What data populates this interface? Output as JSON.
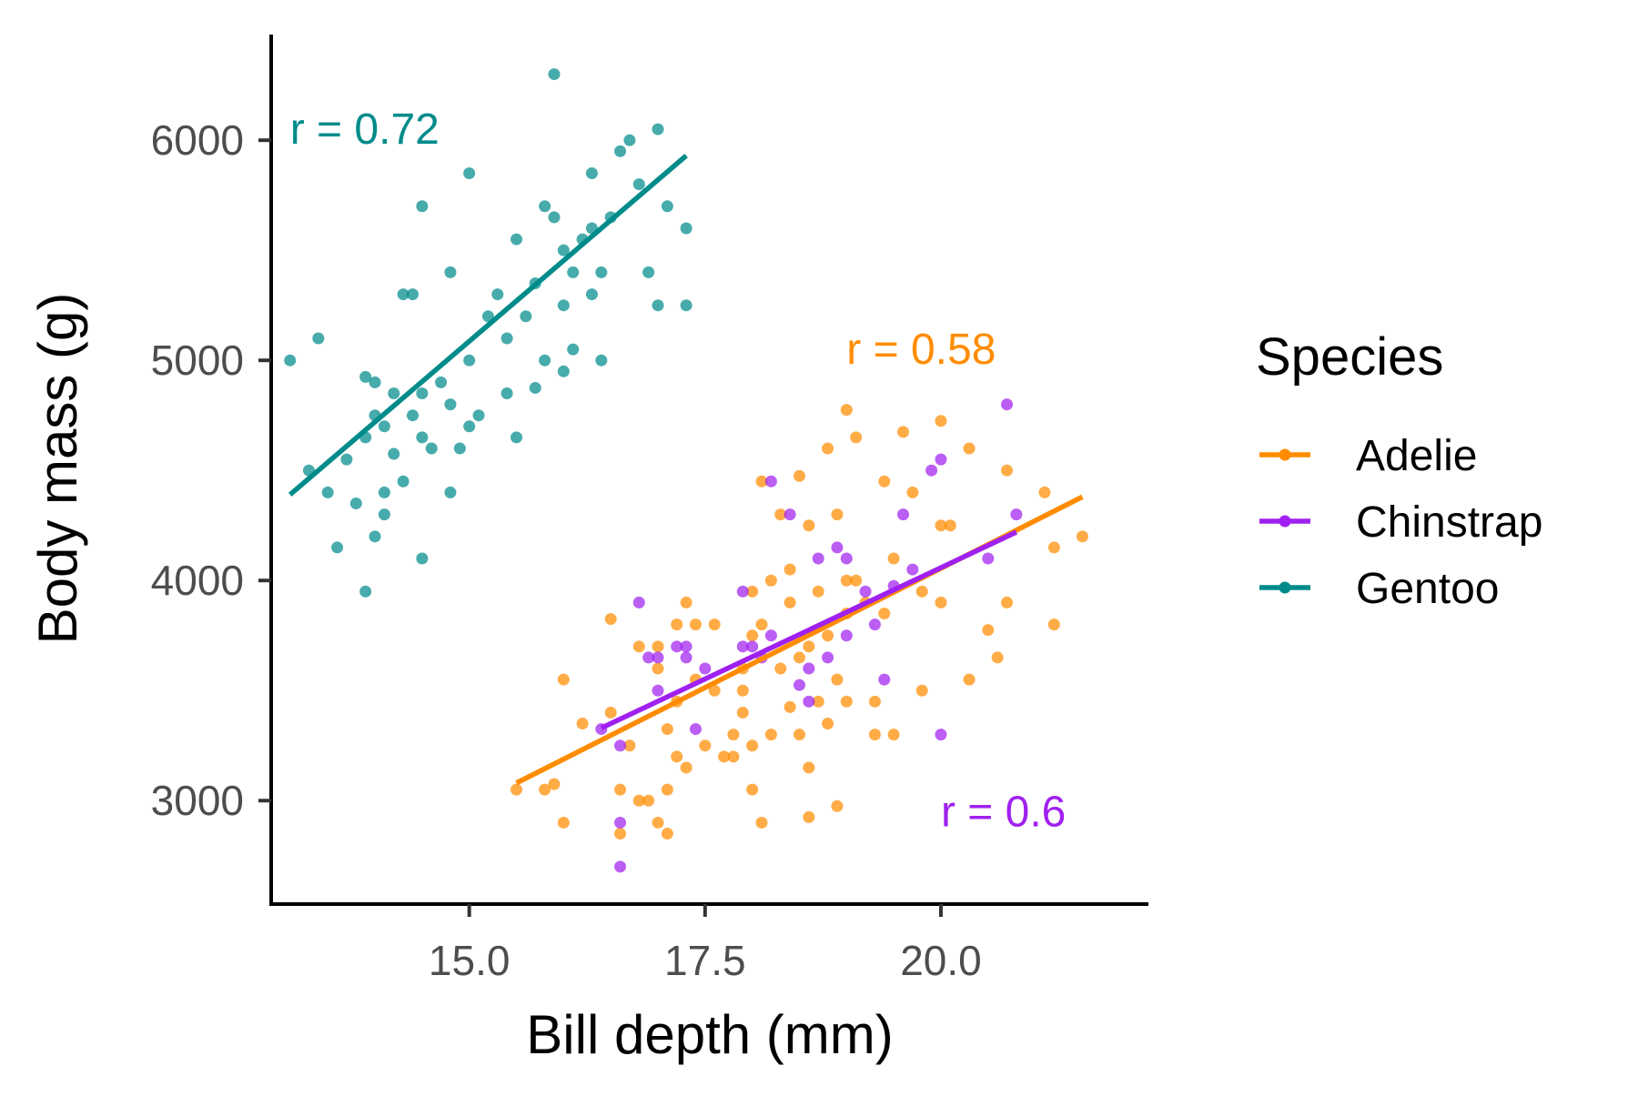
{
  "chart_data": {
    "type": "scatter",
    "xlabel": "Bill depth (mm)",
    "ylabel": "Body mass (g)",
    "xlim": [
      12.9,
      22.2
    ],
    "ylim": [
      2530,
      6480
    ],
    "xticks": [
      15.0,
      17.5,
      20.0
    ],
    "xtick_labels": [
      "15.0",
      "17.5",
      "20.0"
    ],
    "yticks": [
      3000,
      4000,
      5000,
      6000
    ],
    "ytick_labels": [
      "3000",
      "4000",
      "5000",
      "6000"
    ],
    "grid": false,
    "legend": {
      "title": "Species",
      "position": "right",
      "entries": [
        "Adelie",
        "Chinstrap",
        "Gentoo"
      ]
    },
    "series": [
      {
        "name": "Adelie",
        "color": "#ff8c00",
        "annotation": "r = 0.58",
        "annotation_at": [
          19.0,
          5050
        ],
        "fit": {
          "x": [
            15.5,
            21.5
          ],
          "y": [
            3080,
            4380
          ]
        },
        "points": [
          [
            15.5,
            3050
          ],
          [
            15.8,
            3050
          ],
          [
            15.9,
            3075
          ],
          [
            16.0,
            3550
          ],
          [
            16.0,
            2900
          ],
          [
            16.2,
            3350
          ],
          [
            16.5,
            3400
          ],
          [
            16.5,
            3825
          ],
          [
            16.6,
            3050
          ],
          [
            16.6,
            2850
          ],
          [
            16.7,
            3250
          ],
          [
            16.8,
            3700
          ],
          [
            16.8,
            3000
          ],
          [
            16.9,
            3000
          ],
          [
            17.0,
            3700
          ],
          [
            17.0,
            3600
          ],
          [
            17.0,
            2900
          ],
          [
            17.1,
            3325
          ],
          [
            17.1,
            2850
          ],
          [
            17.1,
            3050
          ],
          [
            17.2,
            3800
          ],
          [
            17.2,
            3450
          ],
          [
            17.2,
            3200
          ],
          [
            17.3,
            3900
          ],
          [
            17.3,
            3150
          ],
          [
            17.4,
            3800
          ],
          [
            17.4,
            3550
          ],
          [
            17.5,
            3250
          ],
          [
            17.6,
            3500
          ],
          [
            17.7,
            3200
          ],
          [
            17.8,
            3300
          ],
          [
            17.8,
            3200
          ],
          [
            17.9,
            3400
          ],
          [
            17.9,
            3600
          ],
          [
            17.9,
            3500
          ],
          [
            18.0,
            3950
          ],
          [
            18.0,
            3750
          ],
          [
            18.0,
            3250
          ],
          [
            18.1,
            4450
          ],
          [
            18.1,
            3800
          ],
          [
            18.1,
            2900
          ],
          [
            18.2,
            4000
          ],
          [
            18.2,
            3300
          ],
          [
            18.3,
            4300
          ],
          [
            18.3,
            3600
          ],
          [
            18.4,
            4050
          ],
          [
            18.4,
            3900
          ],
          [
            18.4,
            3425
          ],
          [
            18.5,
            4475
          ],
          [
            18.5,
            3650
          ],
          [
            18.5,
            3300
          ],
          [
            18.6,
            4250
          ],
          [
            18.6,
            3700
          ],
          [
            18.6,
            3150
          ],
          [
            18.6,
            2925
          ],
          [
            18.7,
            3950
          ],
          [
            18.7,
            3450
          ],
          [
            18.8,
            4600
          ],
          [
            18.8,
            3750
          ],
          [
            18.9,
            4300
          ],
          [
            18.9,
            3550
          ],
          [
            18.9,
            2975
          ],
          [
            19.0,
            4775
          ],
          [
            19.0,
            4000
          ],
          [
            19.0,
            3850
          ],
          [
            19.0,
            3450
          ],
          [
            19.1,
            4650
          ],
          [
            19.1,
            4000
          ],
          [
            19.2,
            3900
          ],
          [
            19.3,
            3450
          ],
          [
            19.3,
            3300
          ],
          [
            19.4,
            4450
          ],
          [
            19.4,
            3850
          ],
          [
            19.5,
            4100
          ],
          [
            19.6,
            4675
          ],
          [
            19.7,
            4400
          ],
          [
            19.8,
            3950
          ],
          [
            19.8,
            3500
          ],
          [
            20.0,
            4725
          ],
          [
            20.0,
            4250
          ],
          [
            20.0,
            3900
          ],
          [
            20.1,
            4250
          ],
          [
            20.3,
            4600
          ],
          [
            20.3,
            3550
          ],
          [
            20.5,
            3775
          ],
          [
            20.6,
            3650
          ],
          [
            20.7,
            4500
          ],
          [
            20.7,
            3900
          ],
          [
            21.1,
            4400
          ],
          [
            21.2,
            4150
          ],
          [
            21.2,
            3800
          ],
          [
            21.5,
            4200
          ],
          [
            18.0,
            3050
          ],
          [
            17.6,
            3800
          ],
          [
            18.8,
            3350
          ],
          [
            19.5,
            3300
          ]
        ]
      },
      {
        "name": "Chinstrap",
        "color": "#a020f0",
        "annotation": "r = 0.6",
        "annotation_at": [
          20.0,
          2950
        ],
        "fit": {
          "x": [
            16.4,
            20.8
          ],
          "y": [
            3330,
            4220
          ]
        },
        "points": [
          [
            16.4,
            3325
          ],
          [
            16.6,
            3250
          ],
          [
            16.6,
            2900
          ],
          [
            16.6,
            2700
          ],
          [
            16.8,
            3900
          ],
          [
            17.0,
            3650
          ],
          [
            17.0,
            3500
          ],
          [
            17.3,
            3700
          ],
          [
            17.3,
            3650
          ],
          [
            17.4,
            3325
          ],
          [
            17.5,
            3600
          ],
          [
            17.9,
            3700
          ],
          [
            18.0,
            3700
          ],
          [
            18.2,
            4450
          ],
          [
            18.2,
            3750
          ],
          [
            18.4,
            4300
          ],
          [
            18.5,
            3525
          ],
          [
            18.6,
            3600
          ],
          [
            18.6,
            3450
          ],
          [
            18.7,
            4100
          ],
          [
            18.8,
            3650
          ],
          [
            18.9,
            4150
          ],
          [
            19.0,
            4100
          ],
          [
            19.0,
            3750
          ],
          [
            19.2,
            3950
          ],
          [
            19.3,
            3800
          ],
          [
            19.5,
            3975
          ],
          [
            19.6,
            4300
          ],
          [
            19.7,
            4050
          ],
          [
            19.9,
            4500
          ],
          [
            20.0,
            4550
          ],
          [
            20.0,
            3300
          ],
          [
            20.5,
            4100
          ],
          [
            20.8,
            4300
          ],
          [
            20.7,
            4800
          ],
          [
            18.1,
            3650
          ],
          [
            17.9,
            3950
          ],
          [
            19.4,
            3550
          ],
          [
            16.9,
            3650
          ],
          [
            17.2,
            3700
          ]
        ]
      },
      {
        "name": "Gentoo",
        "color": "#008b8b",
        "annotation": "r = 0.72",
        "annotation_at": [
          13.1,
          6050
        ],
        "fit": {
          "x": [
            13.1,
            17.3
          ],
          "y": [
            4390,
            5930
          ]
        },
        "points": [
          [
            13.1,
            5000
          ],
          [
            13.3,
            4500
          ],
          [
            13.4,
            5100
          ],
          [
            13.5,
            4400
          ],
          [
            13.6,
            4150
          ],
          [
            13.7,
            4550
          ],
          [
            13.8,
            4350
          ],
          [
            13.9,
            4650
          ],
          [
            13.9,
            3950
          ],
          [
            13.9,
            4925
          ],
          [
            14.0,
            4750
          ],
          [
            14.0,
            4200
          ],
          [
            14.1,
            4700
          ],
          [
            14.1,
            4300
          ],
          [
            14.1,
            4400
          ],
          [
            14.2,
            4575
          ],
          [
            14.2,
            4850
          ],
          [
            14.3,
            5300
          ],
          [
            14.3,
            4450
          ],
          [
            14.4,
            5300
          ],
          [
            14.4,
            4750
          ],
          [
            14.5,
            5700
          ],
          [
            14.5,
            4850
          ],
          [
            14.5,
            4100
          ],
          [
            14.6,
            4600
          ],
          [
            14.7,
            4900
          ],
          [
            14.8,
            5400
          ],
          [
            14.8,
            4800
          ],
          [
            14.8,
            4400
          ],
          [
            14.9,
            4600
          ],
          [
            15.0,
            5850
          ],
          [
            15.0,
            4700
          ],
          [
            15.1,
            4750
          ],
          [
            15.2,
            5200
          ],
          [
            15.3,
            5300
          ],
          [
            15.4,
            5100
          ],
          [
            15.4,
            4850
          ],
          [
            15.5,
            5550
          ],
          [
            15.6,
            5200
          ],
          [
            15.7,
            5350
          ],
          [
            15.7,
            4875
          ],
          [
            15.8,
            5700
          ],
          [
            15.8,
            5000
          ],
          [
            15.9,
            5650
          ],
          [
            16.0,
            5250
          ],
          [
            16.0,
            4950
          ],
          [
            16.1,
            5400
          ],
          [
            16.1,
            5050
          ],
          [
            16.2,
            5550
          ],
          [
            16.3,
            5850
          ],
          [
            16.3,
            5600
          ],
          [
            16.4,
            5400
          ],
          [
            16.4,
            5000
          ],
          [
            16.5,
            5650
          ],
          [
            16.6,
            5950
          ],
          [
            16.7,
            6000
          ],
          [
            16.8,
            5800
          ],
          [
            16.9,
            5400
          ],
          [
            17.0,
            5250
          ],
          [
            17.1,
            5700
          ],
          [
            17.3,
            5600
          ],
          [
            17.3,
            5250
          ],
          [
            15.9,
            6300
          ],
          [
            17.0,
            6050
          ],
          [
            14.0,
            4900
          ],
          [
            14.5,
            4650
          ],
          [
            15.0,
            5000
          ],
          [
            15.5,
            4650
          ],
          [
            16.0,
            5500
          ],
          [
            16.3,
            5300
          ]
        ]
      }
    ]
  }
}
